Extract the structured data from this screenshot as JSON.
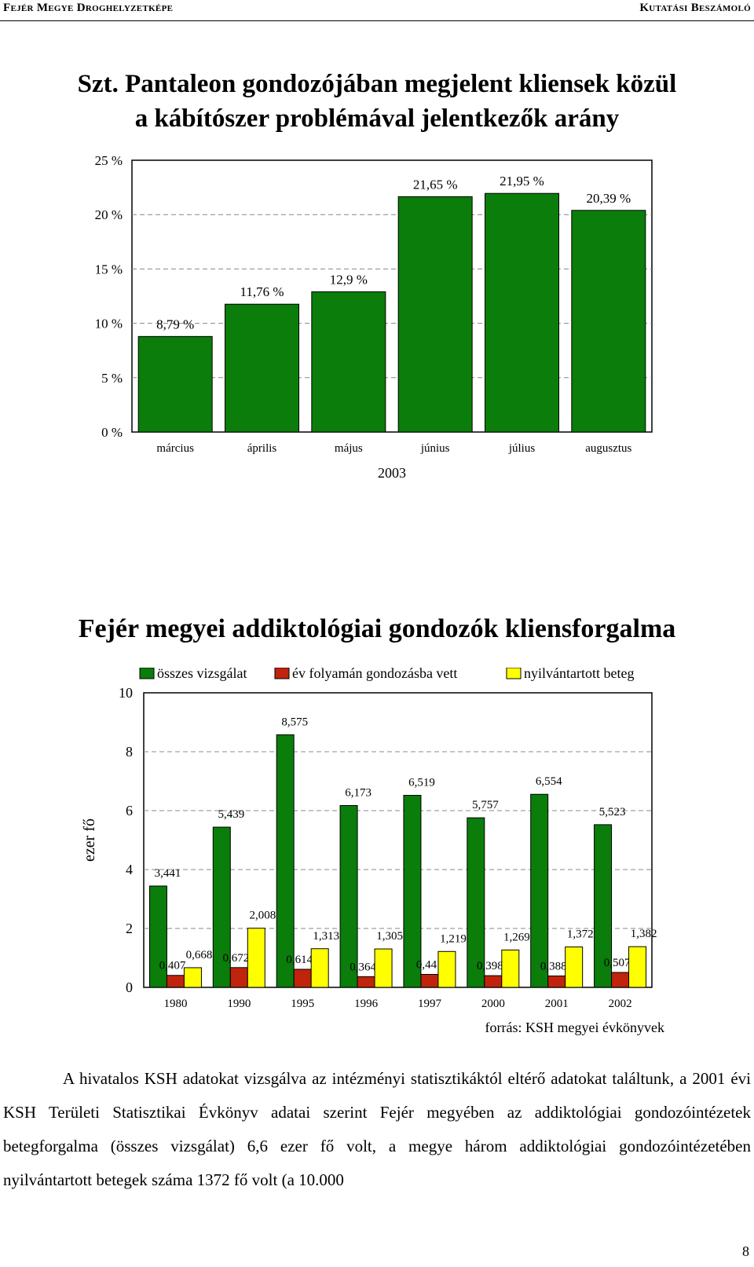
{
  "header": {
    "left": "Fejér Megye Droghelyzetképe",
    "right": "Kutatási Beszámoló"
  },
  "chart1": {
    "title_line1": "Szt. Pantaleon gondozójában megjelent kliensek közül",
    "title_line2": "a kábítószer problémával jelentkezők arány",
    "chart_data": {
      "type": "bar",
      "categories": [
        "március",
        "április",
        "május",
        "június",
        "július",
        "augusztus"
      ],
      "values": [
        8.79,
        11.76,
        12.9,
        21.65,
        21.95,
        20.39
      ],
      "value_labels": [
        "8,79 %",
        "11,76 %",
        "12,9 %",
        "21,65 %",
        "21,95 %",
        "20,39 %"
      ],
      "y_ticks": [
        "0 %",
        "5 %",
        "10 %",
        "15 %",
        "20 %",
        "25 %"
      ],
      "ylim": [
        0,
        25
      ],
      "xlabel": "2003",
      "grid": "dashed horizontal",
      "bar_color": "#0a7d0a"
    }
  },
  "chart2": {
    "title": "Fejér megyei addiktológiai gondozók kliensforgalma",
    "chart_data": {
      "type": "bar",
      "categories": [
        "1980",
        "1990",
        "1995",
        "1996",
        "1997",
        "2000",
        "2001",
        "2002"
      ],
      "series": [
        {
          "name": "összes vizsgálat",
          "color": "#0a7d0a",
          "values": [
            3.441,
            5.439,
            8.575,
            6.173,
            6.519,
            5.757,
            6.554,
            5.523
          ],
          "labels": [
            "3,441",
            "5,439",
            "8,575",
            "6,173",
            "6,519",
            "5,757",
            "6,554",
            "5,523"
          ]
        },
        {
          "name": "év folyamán gondozásba vett",
          "color": "#c0240c",
          "values": [
            0.407,
            0.672,
            0.614,
            0.364,
            0.44,
            0.398,
            0.388,
            0.507
          ],
          "labels": [
            "0,407",
            "0,672",
            "0,614",
            "0,364",
            "0,44",
            "0,398",
            "0,388",
            "0,507"
          ]
        },
        {
          "name": "nyilvántartott beteg",
          "color": "#ffff00",
          "values": [
            0.668,
            2.008,
            1.313,
            1.305,
            1.219,
            1.269,
            1.372,
            1.382
          ],
          "labels": [
            "0,668",
            "2,008",
            "1,313",
            "1,305",
            "1,219",
            "1,269",
            "1,372",
            "1,382"
          ]
        }
      ],
      "y_ticks": [
        "0",
        "2",
        "4",
        "6",
        "8",
        "10"
      ],
      "ylim": [
        0,
        10
      ],
      "ylabel": "ezer fő",
      "legend": "top",
      "grid": "dashed horizontal"
    },
    "source": "forrás: KSH megyei évkönyvek"
  },
  "paragraph": "A hivatalos KSH adatokat vizsgálva az intézményi statisztikáktól eltérő adatokat találtunk, a 2001 évi KSH Területi Statisztikai Évkönyv adatai szerint Fejér megyében az addiktológiai gondozóintézetek betegforgalma (összes vizsgálat) 6,6 ezer fő volt, a megye három addiktológiai gondozóintézetében nyilvántartott betegek száma 1372 fő volt (a 10.000",
  "page_number": "8"
}
